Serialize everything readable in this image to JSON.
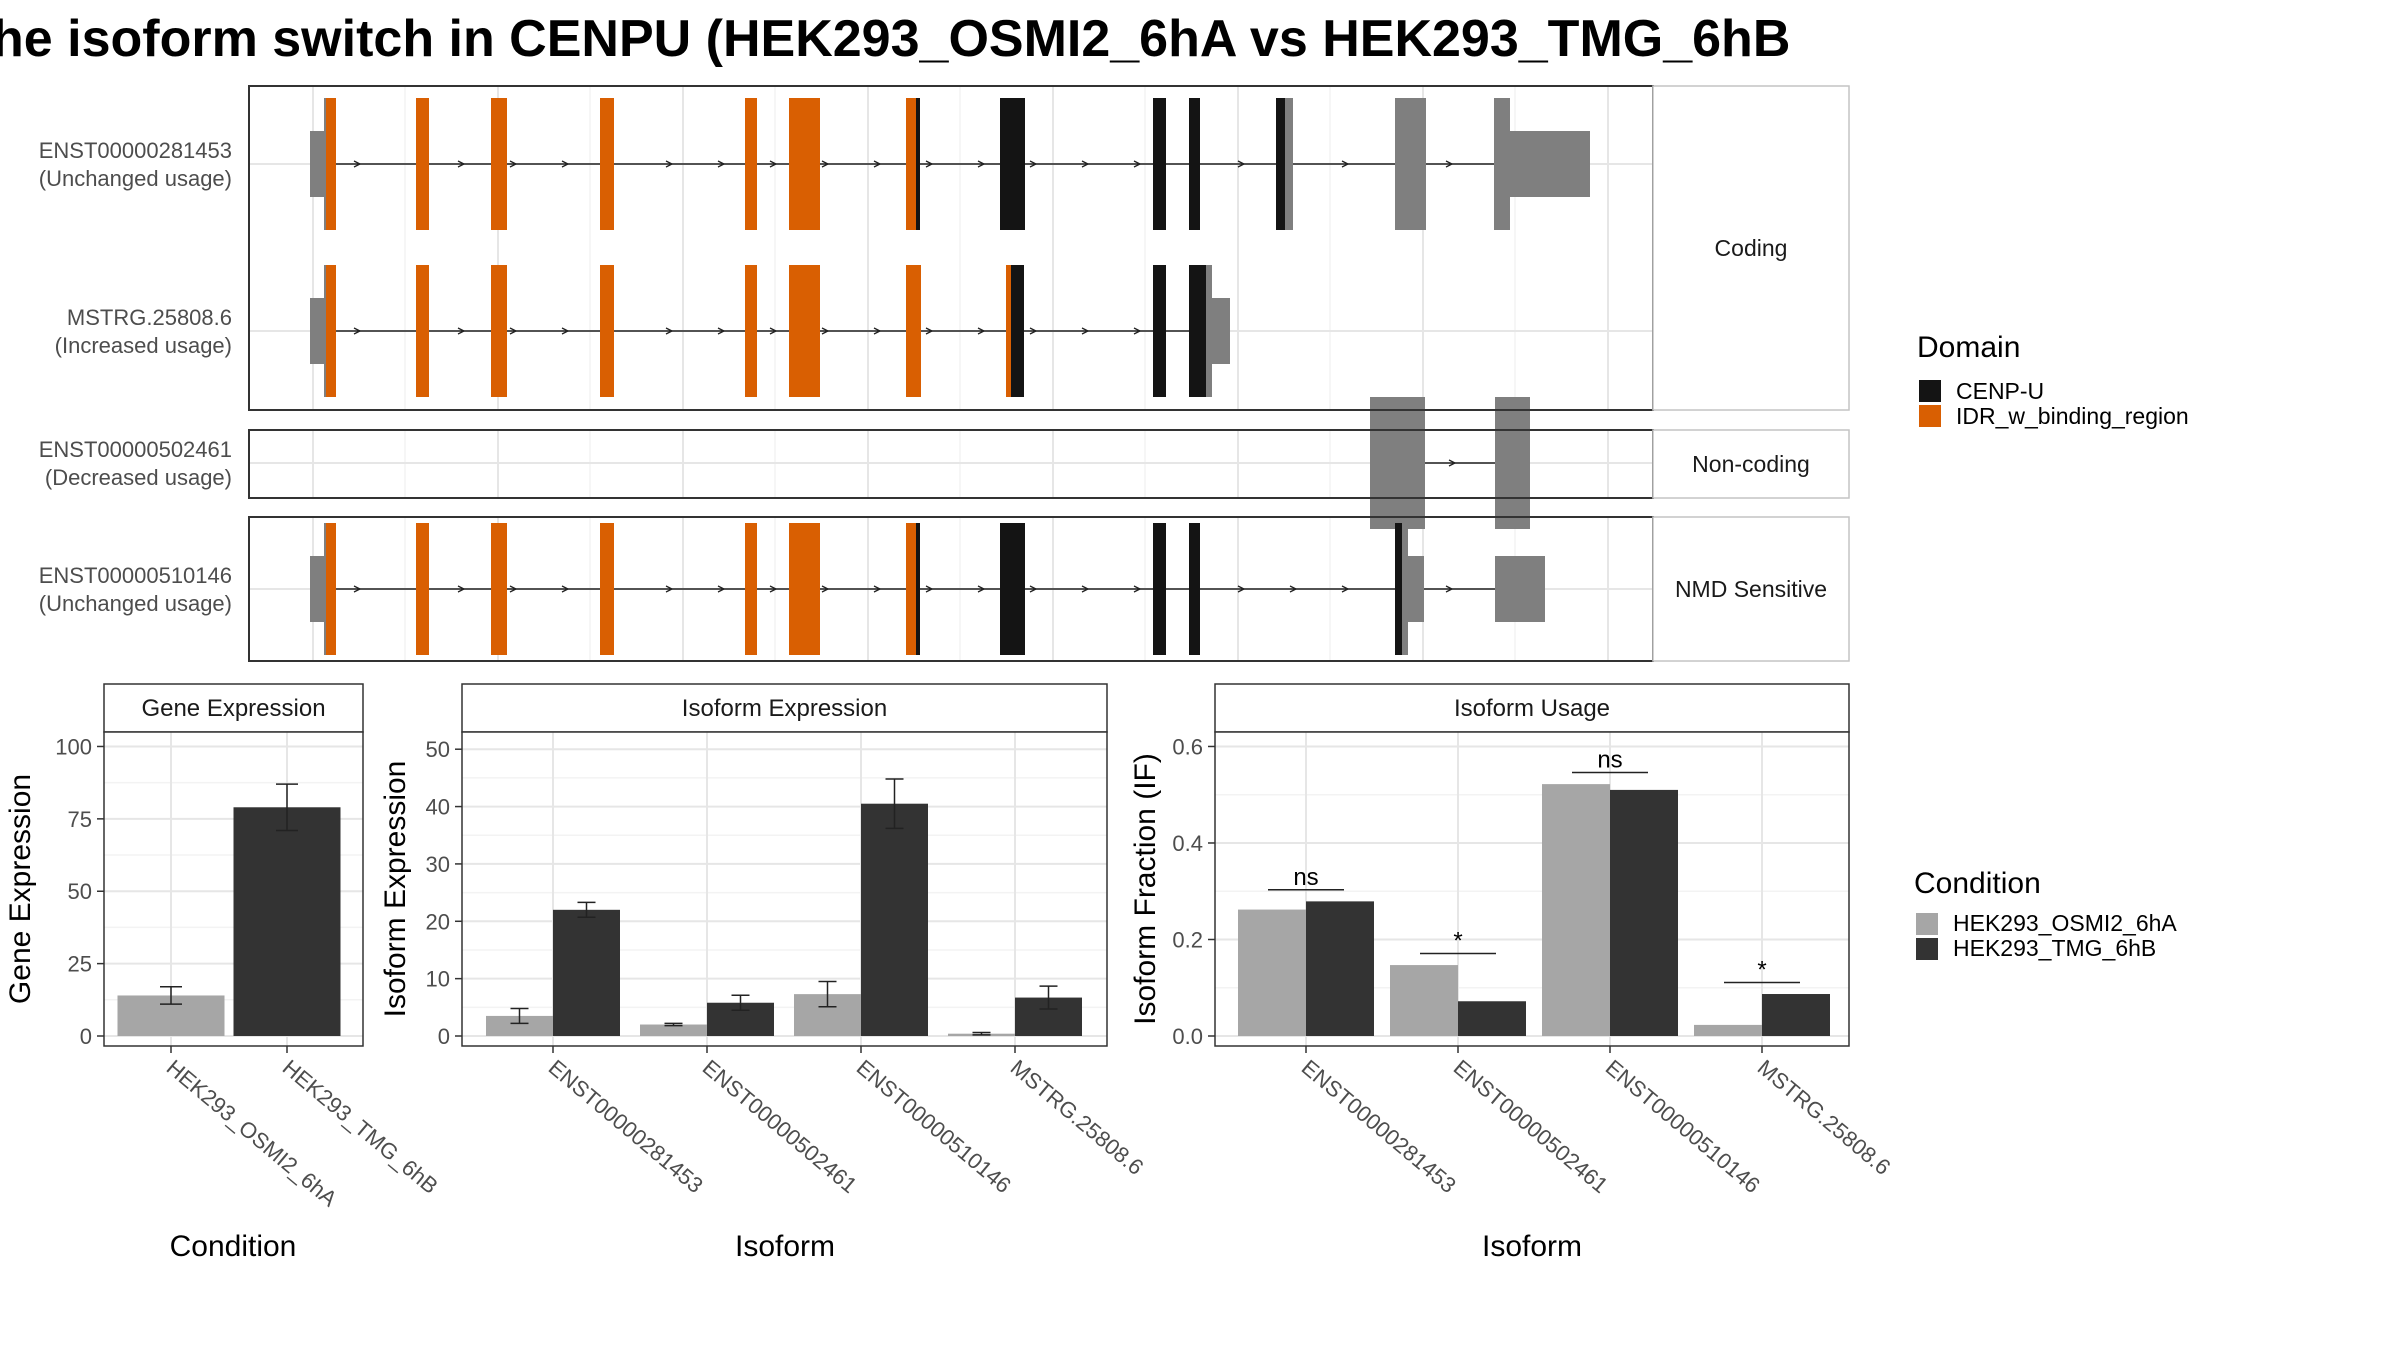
{
  "title": "he isoform switch in CENPU (HEK293_OSMI2_6hA vs HEK293_TMG_6hB",
  "colors": {
    "cenp_u": "#141414",
    "idr": "#d95f02",
    "utr": "#7f7f7f",
    "cond_a": "#a6a6a6",
    "cond_b": "#333333"
  },
  "structure": {
    "isoforms": [
      {
        "id": "ENST00000281453",
        "note": "(Unchanged usage)"
      },
      {
        "id": "MSTRG.25808.6",
        "note": "(Increased usage)"
      },
      {
        "id": "ENST00000502461",
        "note": "(Decreased usage)"
      },
      {
        "id": "ENST00000510146",
        "note": "(Unchanged usage)"
      }
    ],
    "strips": [
      "Coding",
      "Non-coding",
      "NMD Sensitive"
    ]
  },
  "legend_domain": {
    "title": "Domain",
    "items": [
      {
        "label": "CENP-U",
        "color": "#141414"
      },
      {
        "label": "IDR_w_binding_region",
        "color": "#d95f02"
      }
    ]
  },
  "legend_condition": {
    "title": "Condition",
    "items": [
      {
        "label": "HEK293_OSMI2_6hA",
        "color": "#a6a6a6"
      },
      {
        "label": "HEK293_TMG_6hB",
        "color": "#333333"
      }
    ]
  },
  "chart_data": [
    {
      "type": "bar",
      "panel": "Gene Expression",
      "categories": [
        "HEK293_OSMI2_6hA",
        "HEK293_TMG_6hB"
      ],
      "values": [
        14,
        79
      ],
      "errors": [
        3,
        8
      ],
      "xlabel": "Condition",
      "ylabel": "Gene Expression",
      "ylim": [
        0,
        105
      ],
      "yticks": [
        0,
        25,
        50,
        75,
        100
      ]
    },
    {
      "type": "bar",
      "panel": "Isoform Expression",
      "categories": [
        "ENST00000281453",
        "ENST00000502461",
        "ENST00000510146",
        "MSTRG.25808.6"
      ],
      "series": [
        {
          "name": "HEK293_OSMI2_6hA",
          "values": [
            3.5,
            2.0,
            7.3,
            0.4
          ],
          "errors": [
            1.3,
            0.2,
            2.2,
            0.2
          ]
        },
        {
          "name": "HEK293_TMG_6hB",
          "values": [
            22.0,
            5.8,
            40.5,
            6.7
          ],
          "errors": [
            1.3,
            1.3,
            4.3,
            2.0
          ]
        }
      ],
      "xlabel": "Isoform",
      "ylabel": "Isoform Expression",
      "ylim": [
        0,
        53
      ],
      "yticks": [
        0,
        10,
        20,
        30,
        40,
        50
      ]
    },
    {
      "type": "bar",
      "panel": "Isoform Usage",
      "categories": [
        "ENST00000281453",
        "ENST00000502461",
        "ENST00000510146",
        "MSTRG.25808.6"
      ],
      "series": [
        {
          "name": "HEK293_OSMI2_6hA",
          "values": [
            0.262,
            0.147,
            0.522,
            0.023
          ]
        },
        {
          "name": "HEK293_TMG_6hB",
          "values": [
            0.279,
            0.072,
            0.51,
            0.087
          ]
        }
      ],
      "significance": [
        "ns",
        "*",
        "ns",
        "*"
      ],
      "xlabel": "Isoform",
      "ylabel": "Isoform Fraction (IF)",
      "ylim": [
        0,
        0.63
      ],
      "yticks": [
        "0.0",
        "0.2",
        "0.4",
        "0.6"
      ]
    }
  ]
}
